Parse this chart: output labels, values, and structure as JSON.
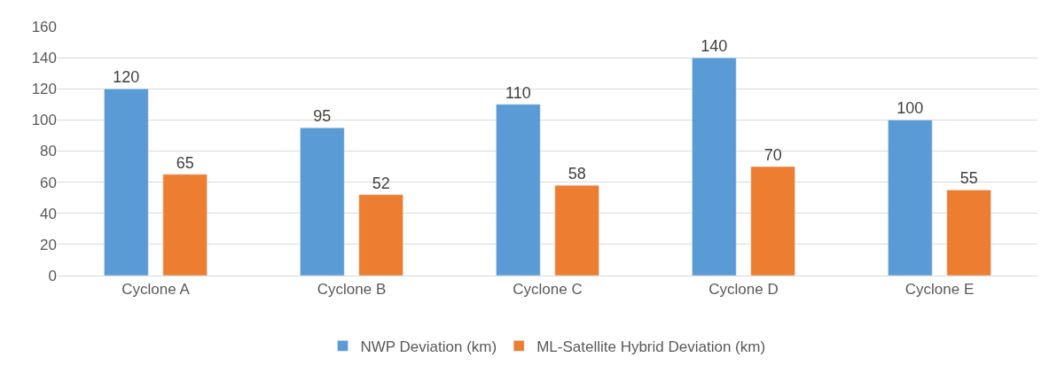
{
  "chart_data": {
    "type": "bar",
    "categories": [
      "Cyclone A",
      "Cyclone B",
      "Cyclone C",
      "Cyclone D",
      "Cyclone E"
    ],
    "series": [
      {
        "name": "NWP Deviation (km)",
        "color": "#5b9bd5",
        "values": [
          120,
          95,
          110,
          140,
          100
        ]
      },
      {
        "name": "ML-Satellite Hybrid Deviation (km)",
        "color": "#ed7d31",
        "values": [
          65,
          52,
          58,
          70,
          55
        ]
      }
    ],
    "ylim": [
      0,
      160
    ],
    "yticks": [
      0,
      20,
      40,
      60,
      80,
      100,
      120,
      140,
      160
    ],
    "grid": "y",
    "legend": "bottom",
    "data_labels": true
  }
}
